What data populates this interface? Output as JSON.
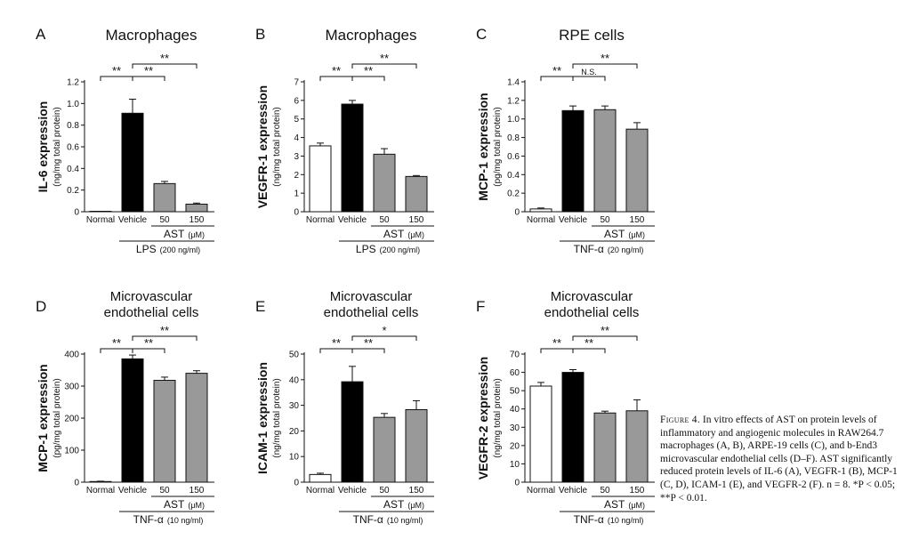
{
  "caption": {
    "label": "Figure 4.",
    "text": "In vitro effects of AST on protein levels of inflammatory and angiogenic molecules in RAW264.7 macrophages (A, B), ARPE-19 cells (C), and b-End3 microvascular endothelial cells (D–F). AST significantly reduced protein levels of IL-6 (A), VEGFR-1 (B), MCP-1 (C, D), ICAM-1 (E), and VEGFR-2 (F). n = 8. *P < 0.05; **P < 0.01."
  },
  "colors": {
    "Normal": "#ffffff",
    "Vehicle": "#000000",
    "AST": "#999999"
  },
  "chart_data": [
    {
      "type": "bar",
      "panel": "A",
      "title": [
        "Macrophages"
      ],
      "ylabel": "IL-6 expression",
      "ylabel_sub": "(ng/mg total protein)",
      "categories": [
        "Normal",
        "Vehicle",
        "50",
        "150"
      ],
      "values": [
        0.0,
        0.91,
        0.26,
        0.07
      ],
      "errors": [
        0.0,
        0.13,
        0.02,
        0.01
      ],
      "ylim": [
        0,
        1.2
      ],
      "yticks": [
        "0",
        "0.2",
        "0.4",
        "0.6",
        "0.8",
        "1.0",
        "1.2"
      ],
      "dose_label": "AST",
      "dose_unit": "(μM)",
      "stim": "LPS",
      "stim_unit": "(200 ng/ml)",
      "sig": {
        "normal_vehicle": "**",
        "vehicle_50": "**",
        "vehicle_150": "**"
      }
    },
    {
      "type": "bar",
      "panel": "B",
      "title": [
        "Macrophages"
      ],
      "ylabel": "VEGFR-1 expression",
      "ylabel_sub": "(ng/mg total protein)",
      "categories": [
        "Normal",
        "Vehicle",
        "50",
        "150"
      ],
      "values": [
        3.55,
        5.8,
        3.1,
        1.9
      ],
      "errors": [
        0.15,
        0.2,
        0.3,
        0.05
      ],
      "ylim": [
        0,
        7
      ],
      "yticks": [
        "0",
        "1",
        "2",
        "3",
        "4",
        "5",
        "6",
        "7"
      ],
      "dose_label": "AST",
      "dose_unit": "(μM)",
      "stim": "LPS",
      "stim_unit": "(200 ng/ml)",
      "sig": {
        "normal_vehicle": "**",
        "vehicle_50": "**",
        "vehicle_150": "**"
      }
    },
    {
      "type": "bar",
      "panel": "C",
      "title": [
        "RPE cells"
      ],
      "ylabel": "MCP-1 expression",
      "ylabel_sub": "(pg/mg total protein)",
      "categories": [
        "Normal",
        "Vehicle",
        "50",
        "150"
      ],
      "values": [
        0.03,
        1.09,
        1.1,
        0.89
      ],
      "errors": [
        0.01,
        0.05,
        0.04,
        0.07
      ],
      "ylim": [
        0,
        1.4
      ],
      "yticks": [
        "0",
        "0.2",
        "0.4",
        "0.6",
        "0.8",
        "1.0",
        "1.2",
        "1.4"
      ],
      "dose_label": "AST",
      "dose_unit": "(μM)",
      "stim": "TNF-α",
      "stim_unit": "(20 ng/ml)",
      "sig": {
        "normal_vehicle": "**",
        "vehicle_50": "N.S.",
        "vehicle_150": "**"
      }
    },
    {
      "type": "bar",
      "panel": "D",
      "title": [
        "Microvascular",
        "endothelial cells"
      ],
      "ylabel": "MCP-1 expression",
      "ylabel_sub": "(pg/mg total protein)",
      "categories": [
        "Normal",
        "Vehicle",
        "50",
        "150"
      ],
      "values": [
        2,
        385,
        318,
        340
      ],
      "errors": [
        1,
        12,
        10,
        8
      ],
      "ylim": [
        0,
        400
      ],
      "yticks": [
        "0",
        "100",
        "200",
        "300",
        "400"
      ],
      "dose_label": "AST",
      "dose_unit": "(μM)",
      "stim": "TNF-α",
      "stim_unit": "(10 ng/ml)",
      "sig": {
        "normal_vehicle": "**",
        "vehicle_50": "**",
        "vehicle_150": "**"
      }
    },
    {
      "type": "bar",
      "panel": "E",
      "title": [
        "Microvascular",
        "endothelial cells"
      ],
      "ylabel": "ICAM-1 expression",
      "ylabel_sub": "(ng/mg total protein)",
      "categories": [
        "Normal",
        "Vehicle",
        "50",
        "150"
      ],
      "values": [
        3,
        39.2,
        25.3,
        28.3
      ],
      "errors": [
        0.5,
        6,
        1.5,
        3.5
      ],
      "ylim": [
        0,
        50
      ],
      "yticks": [
        "0",
        "10",
        "20",
        "30",
        "40",
        "50"
      ],
      "dose_label": "AST",
      "dose_unit": "(μM)",
      "stim": "TNF-α",
      "stim_unit": "(10 ng/ml)",
      "sig": {
        "normal_vehicle": "**",
        "vehicle_50": "**",
        "vehicle_150": "*"
      }
    },
    {
      "type": "bar",
      "panel": "F",
      "title": [
        "Microvascular",
        "endothelial cells"
      ],
      "ylabel": "VEGFR-2 expression",
      "ylabel_sub": "(ng/mg total protein)",
      "categories": [
        "Normal",
        "Vehicle",
        "50",
        "150"
      ],
      "values": [
        52.5,
        60,
        37.8,
        39
      ],
      "errors": [
        2,
        1.5,
        1,
        6
      ],
      "ylim": [
        0,
        70
      ],
      "yticks": [
        "0",
        "10",
        "20",
        "30",
        "40",
        "50",
        "60",
        "70"
      ],
      "dose_label": "AST",
      "dose_unit": "(μM)",
      "stim": "TNF-α",
      "stim_unit": "(10 ng/ml)",
      "sig": {
        "normal_vehicle": "**",
        "vehicle_50": "**",
        "vehicle_150": "**"
      }
    }
  ]
}
